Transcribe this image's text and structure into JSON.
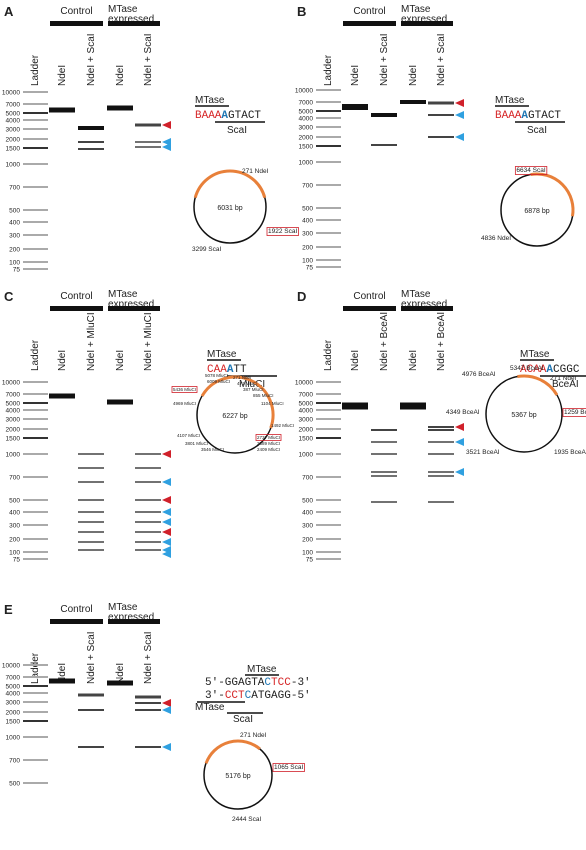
{
  "panels": [
    {
      "letter": "A",
      "groups": [
        [
          "Control"
        ],
        [
          "MTase",
          "expressed"
        ]
      ],
      "ladder_label": "Ladder",
      "lanes": [
        "NdeI",
        "NdeI + ScaI",
        "NdeI",
        "NdeI + ScaI"
      ],
      "ladder": [
        "10000",
        "7000",
        "5000",
        "4000",
        "3000",
        "2000",
        "1500",
        "1000",
        "700",
        "500",
        "400",
        "300",
        "200",
        "100",
        "75"
      ],
      "motif": {
        "top": "MTase",
        "parts": [
          {
            "text": "BAAA",
            "color": "#d62728"
          },
          {
            "text": "A",
            "color": "#1f77b4"
          },
          {
            "text": "GTACT",
            "color": "#222"
          }
        ],
        "bottom": "ScaI"
      },
      "plasmid": {
        "size": "6031 bp",
        "sites": [
          {
            "label": "271 NdeI",
            "boxed": false
          },
          {
            "label": "1922 ScaI",
            "boxed": true
          },
          {
            "label": "3299 ScaI",
            "boxed": false
          }
        ]
      }
    },
    {
      "letter": "B",
      "groups": [
        [
          "Control"
        ],
        [
          "MTase",
          "expressed"
        ]
      ],
      "ladder_label": "Ladder",
      "lanes": [
        "NdeI",
        "NdeI + ScaI",
        "NdeI",
        "NdeI + ScaI"
      ],
      "ladder": [
        "10000",
        "7000",
        "5000",
        "4000",
        "3000",
        "2000",
        "1500",
        "1000",
        "700",
        "500",
        "400",
        "300",
        "200",
        "100",
        "75"
      ],
      "motif": {
        "top": "MTase",
        "parts": [
          {
            "text": "BAAA",
            "color": "#d62728"
          },
          {
            "text": "A",
            "color": "#1f77b4"
          },
          {
            "text": "GTACT",
            "color": "#222"
          }
        ],
        "bottom": "ScaI"
      },
      "plasmid": {
        "size": "6878 bp",
        "sites": [
          {
            "label": "6634 ScaI",
            "boxed": true
          },
          {
            "label": "4836 NdeI",
            "boxed": false
          }
        ]
      }
    },
    {
      "letter": "C",
      "groups": [
        [
          "Control"
        ],
        [
          "MTase",
          "expressed"
        ]
      ],
      "ladder_label": "Ladder",
      "lanes": [
        "NdeI",
        "NdeI + MluCI",
        "NdeI",
        "NdeI + MluCI"
      ],
      "ladder": [
        "10000",
        "7000",
        "5000",
        "4000",
        "3000",
        "2000",
        "1500",
        "1000",
        "700",
        "500",
        "400",
        "300",
        "200",
        "100",
        "75"
      ],
      "motif": {
        "top": "MTase",
        "parts": [
          {
            "text": "CAA",
            "color": "#d62728"
          },
          {
            "text": "A",
            "color": "#1f77b4"
          },
          {
            "text": "TT",
            "color": "#222"
          }
        ],
        "bottom": "MluCI"
      },
      "plasmid": {
        "size": "6227 bp",
        "sites": [
          {
            "label": "5078 MluCI",
            "boxed": false
          },
          {
            "label": "6009 MluCI",
            "boxed": false
          },
          {
            "label": "5436 MluCI",
            "boxed": true
          },
          {
            "label": "271 NdeI",
            "boxed": false
          },
          {
            "label": "471 MluCI",
            "boxed": false
          },
          {
            "label": "387 MluCI",
            "boxed": false
          },
          {
            "label": "855 MluCI",
            "boxed": false
          },
          {
            "label": "1104 MluCI",
            "boxed": false
          },
          {
            "label": "1492 MluCI",
            "boxed": false
          },
          {
            "label": "4969 MluCI",
            "boxed": false
          },
          {
            "label": "4107 MluCI",
            "boxed": false
          },
          {
            "label": "3801 MluCI",
            "boxed": false
          },
          {
            "label": "3546 MluCI",
            "boxed": false
          },
          {
            "label": "2737 MluCI",
            "boxed": true
          },
          {
            "label": "2589 MluCI",
            "boxed": false
          },
          {
            "label": "2409 MluCI",
            "boxed": false
          }
        ]
      }
    },
    {
      "letter": "D",
      "groups": [
        [
          "Control"
        ],
        [
          "MTase",
          "expressed"
        ]
      ],
      "ladder_label": "Ladder",
      "lanes": [
        "NdeI",
        "NdeI + BceAI",
        "NdeI",
        "NdeI + BceAI"
      ],
      "ladder": [
        "10000",
        "7000",
        "5000",
        "4000",
        "3000",
        "2000",
        "1500",
        "1000",
        "700",
        "500",
        "400",
        "300",
        "200",
        "100",
        "75"
      ],
      "motif": {
        "top": "MTase",
        "parts": [
          {
            "text": "ACAA",
            "color": "#d62728"
          },
          {
            "text": "A",
            "color": "#1f77b4"
          },
          {
            "text": "CGGC",
            "color": "#222"
          }
        ],
        "bottom": "BceAI"
      },
      "plasmid": {
        "size": "5367 bp",
        "sites": [
          {
            "label": "5347 BceAI",
            "boxed": false
          },
          {
            "label": "4976 BceAI",
            "boxed": false
          },
          {
            "label": "271 NdeI",
            "boxed": false
          },
          {
            "label": "4349 BceAI",
            "boxed": false
          },
          {
            "label": "1259 BceAI",
            "boxed": true
          },
          {
            "label": "3521 BceAI",
            "boxed": false
          },
          {
            "label": "1935 BceAI",
            "boxed": false
          }
        ]
      }
    },
    {
      "letter": "E",
      "groups": [
        [
          "Control"
        ],
        [
          "MTase",
          "expressed"
        ]
      ],
      "ladder_label": "Ladder",
      "lanes": [
        "NdeI",
        "NdeI + ScaI",
        "NdeI",
        "NdeI + ScaI"
      ],
      "ladder": [
        "10000",
        "7000",
        "5000",
        "4000",
        "3000",
        "2000",
        "1500",
        "1000",
        "700",
        "500"
      ],
      "motif": {
        "top": "MTase",
        "strand1": [
          {
            "text": "5'-GGAGTA",
            "color": "#222"
          },
          {
            "text": "C",
            "color": "#1f77b4"
          },
          {
            "text": "TCC",
            "color": "#d62728"
          },
          {
            "text": "-3'",
            "color": "#222"
          }
        ],
        "strand2": [
          {
            "text": "3'-",
            "color": "#222"
          },
          {
            "text": "CCT",
            "color": "#d62728"
          },
          {
            "text": "C",
            "color": "#1f77b4"
          },
          {
            "text": "ATGAGG-5'",
            "color": "#222"
          }
        ],
        "left": "MTase",
        "bottom": "ScaI"
      },
      "plasmid": {
        "size": "5176 bp",
        "sites": [
          {
            "label": "271 NdeI",
            "boxed": false
          },
          {
            "label": "1065 ScaI",
            "boxed": true
          },
          {
            "label": "2444 ScaI",
            "boxed": false
          }
        ]
      }
    }
  ]
}
